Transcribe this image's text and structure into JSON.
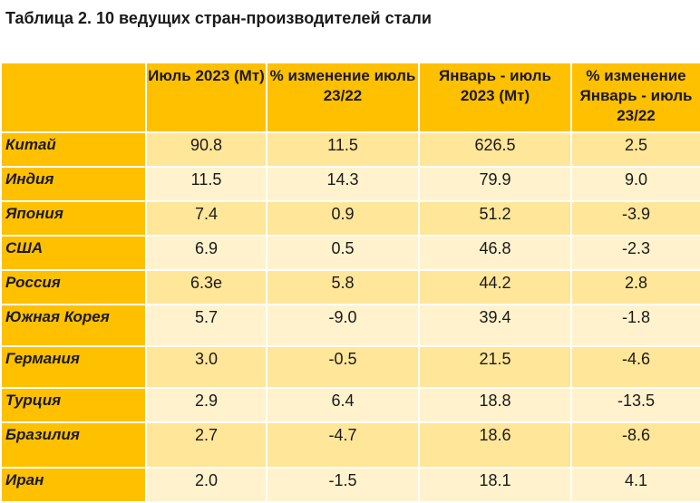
{
  "title": "Таблица 2. 10 ведущих стран-производителей стали",
  "columns": [
    "",
    "Июль 2023 (Мт)",
    "% изменение июль 23/22",
    "Январь - июль 2023 (Мт)",
    "% изменение Январь - июль 23/22"
  ],
  "rows": [
    {
      "country": "Китай",
      "values": [
        "90.8",
        "11.5",
        "626.5",
        "2.5"
      ]
    },
    {
      "country": "Индия",
      "values": [
        "11.5",
        "14.3",
        "79.9",
        "9.0"
      ]
    },
    {
      "country": "Япония",
      "values": [
        "7.4",
        "0.9",
        "51.2",
        "-3.9"
      ]
    },
    {
      "country": "США",
      "values": [
        "6.9",
        "0.5",
        "46.8",
        "-2.3"
      ]
    },
    {
      "country": "Россия",
      "values": [
        "6.3e",
        "5.8",
        "44.2",
        "2.8"
      ]
    },
    {
      "country": "Южная Корея",
      "values": [
        "5.7",
        "-9.0",
        "39.4",
        "-1.8"
      ]
    },
    {
      "country": "Германия",
      "values": [
        "3.0",
        "-0.5",
        "21.5",
        "-4.6"
      ]
    },
    {
      "country": "Турция",
      "values": [
        "2.9",
        "6.4",
        "18.8",
        "-13.5"
      ]
    },
    {
      "country": "Бразилия",
      "values": [
        "2.7",
        "-4.7",
        "18.6",
        "-8.6"
      ]
    },
    {
      "country": "Иран",
      "values": [
        "2.0",
        "-1.5",
        "18.1",
        "4.1"
      ]
    }
  ],
  "colors": {
    "header": "#FFC000",
    "row_odd": "#FFE699",
    "row_even": "#FFF2CC"
  }
}
